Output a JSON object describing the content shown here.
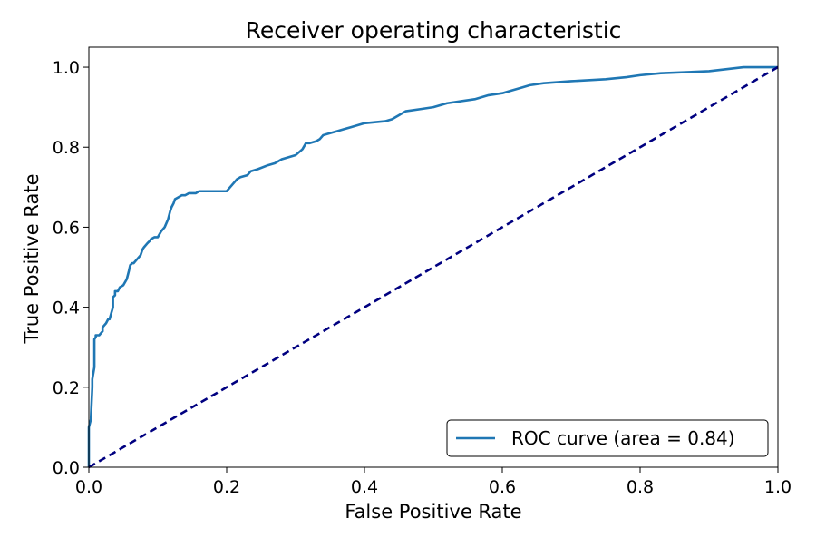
{
  "chart_data": {
    "type": "line",
    "title": "Receiver operating characteristic",
    "xlabel": "False Positive Rate",
    "ylabel": "True Positive Rate",
    "xlim": [
      0.0,
      1.0
    ],
    "ylim": [
      0.0,
      1.05
    ],
    "x_ticks": [
      0.0,
      0.2,
      0.4,
      0.6,
      0.8,
      1.0
    ],
    "x_tick_labels": [
      "0.0",
      "0.2",
      "0.4",
      "0.6",
      "0.8",
      "1.0"
    ],
    "y_ticks": [
      0.0,
      0.2,
      0.4,
      0.6,
      0.8,
      1.0
    ],
    "y_tick_labels": [
      "0.0",
      "0.2",
      "0.4",
      "0.6",
      "0.8",
      "1.0"
    ],
    "grid": false,
    "legend_position": "lower-right",
    "series": [
      {
        "name": "ROC curve (area = 0.84)",
        "style": "solid",
        "color": "#1f77b4",
        "x": [
          0.0,
          0.0,
          0.003,
          0.003,
          0.005,
          0.005,
          0.008,
          0.008,
          0.01,
          0.01,
          0.015,
          0.02,
          0.02,
          0.025,
          0.028,
          0.03,
          0.035,
          0.035,
          0.038,
          0.038,
          0.042,
          0.045,
          0.05,
          0.055,
          0.058,
          0.06,
          0.063,
          0.065,
          0.07,
          0.075,
          0.078,
          0.08,
          0.085,
          0.088,
          0.09,
          0.095,
          0.1,
          0.105,
          0.11,
          0.115,
          0.118,
          0.12,
          0.123,
          0.125,
          0.13,
          0.135,
          0.14,
          0.145,
          0.15,
          0.155,
          0.16,
          0.165,
          0.2,
          0.205,
          0.21,
          0.215,
          0.22,
          0.23,
          0.235,
          0.245,
          0.26,
          0.27,
          0.28,
          0.3,
          0.31,
          0.315,
          0.32,
          0.33,
          0.335,
          0.34,
          0.35,
          0.36,
          0.37,
          0.38,
          0.4,
          0.43,
          0.44,
          0.45,
          0.46,
          0.48,
          0.5,
          0.52,
          0.56,
          0.58,
          0.6,
          0.61,
          0.63,
          0.64,
          0.66,
          0.7,
          0.75,
          0.78,
          0.8,
          0.83,
          0.9,
          0.95,
          1.0
        ],
        "y": [
          0.0,
          0.1,
          0.12,
          0.125,
          0.2,
          0.22,
          0.25,
          0.32,
          0.325,
          0.33,
          0.33,
          0.34,
          0.35,
          0.36,
          0.37,
          0.37,
          0.4,
          0.425,
          0.43,
          0.44,
          0.44,
          0.45,
          0.455,
          0.47,
          0.49,
          0.505,
          0.51,
          0.51,
          0.52,
          0.53,
          0.545,
          0.55,
          0.56,
          0.565,
          0.57,
          0.575,
          0.575,
          0.59,
          0.6,
          0.62,
          0.64,
          0.65,
          0.66,
          0.67,
          0.675,
          0.68,
          0.68,
          0.685,
          0.685,
          0.685,
          0.69,
          0.69,
          0.69,
          0.7,
          0.71,
          0.72,
          0.725,
          0.73,
          0.74,
          0.745,
          0.755,
          0.76,
          0.77,
          0.78,
          0.795,
          0.81,
          0.81,
          0.815,
          0.82,
          0.83,
          0.835,
          0.84,
          0.845,
          0.85,
          0.86,
          0.865,
          0.87,
          0.88,
          0.89,
          0.895,
          0.9,
          0.91,
          0.92,
          0.93,
          0.935,
          0.94,
          0.95,
          0.955,
          0.96,
          0.965,
          0.97,
          0.975,
          0.98,
          0.985,
          0.99,
          1.0,
          1.0
        ]
      },
      {
        "name": "",
        "style": "dashed",
        "color": "#000080",
        "x": [
          0.0,
          1.0
        ],
        "y": [
          0.0,
          1.0
        ]
      }
    ]
  }
}
